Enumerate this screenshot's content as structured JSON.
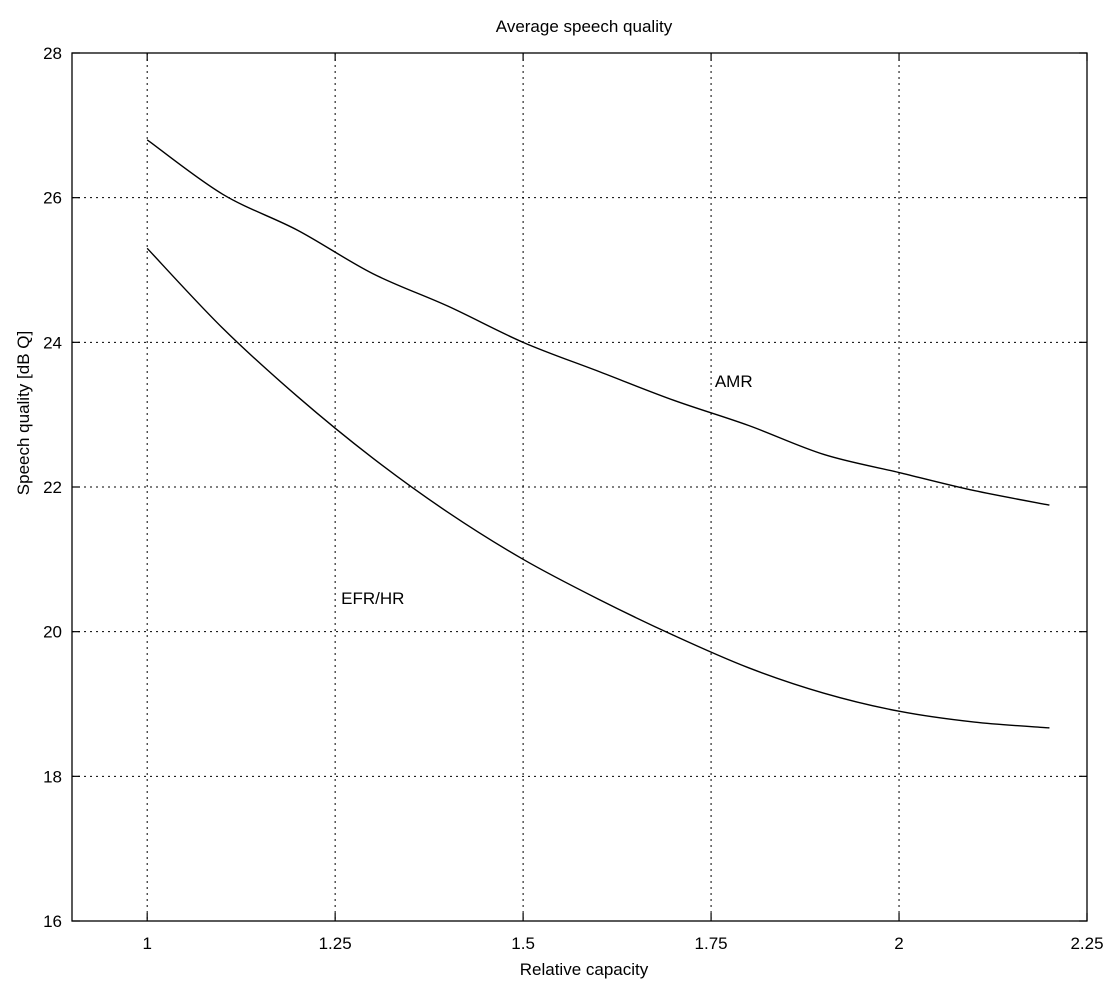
{
  "chart_data": {
    "type": "line",
    "title": "Average speech quality",
    "xlabel": "Relative capacity",
    "ylabel": "Speech quality [dB Q]",
    "xlim": [
      0.9,
      2.25
    ],
    "ylim": [
      16,
      28
    ],
    "x_ticks": [
      1,
      1.25,
      1.5,
      1.75,
      2,
      2.25
    ],
    "x_tick_labels": [
      "1",
      "1.25",
      "1.5",
      "1.75",
      "2",
      "2.25"
    ],
    "y_ticks": [
      16,
      18,
      20,
      22,
      24,
      26,
      28
    ],
    "y_tick_labels": [
      "16",
      "18",
      "20",
      "22",
      "24",
      "26",
      "28"
    ],
    "grid": true,
    "grid_style": "dotted",
    "legend": "none",
    "series": [
      {
        "name": "AMR",
        "color": "#000000",
        "x": [
          1.0,
          1.1,
          1.2,
          1.3,
          1.4,
          1.5,
          1.6,
          1.7,
          1.8,
          1.9,
          2.0,
          2.1,
          2.2
        ],
        "y": [
          26.8,
          26.05,
          25.55,
          24.95,
          24.5,
          24.0,
          23.6,
          23.2,
          22.85,
          22.45,
          22.2,
          21.95,
          21.75
        ]
      },
      {
        "name": "EFR/HR",
        "color": "#000000",
        "x": [
          1.0,
          1.1,
          1.2,
          1.3,
          1.4,
          1.5,
          1.6,
          1.7,
          1.8,
          1.9,
          2.0,
          2.1,
          2.2
        ],
        "y": [
          25.3,
          24.2,
          23.25,
          22.4,
          21.65,
          21.0,
          20.45,
          19.95,
          19.5,
          19.15,
          18.9,
          18.75,
          18.67
        ]
      }
    ],
    "annotations": [
      {
        "text": "AMR",
        "x": 1.755,
        "y": 23.38
      },
      {
        "text": "EFR/HR",
        "x": 1.258,
        "y": 20.38
      }
    ]
  }
}
